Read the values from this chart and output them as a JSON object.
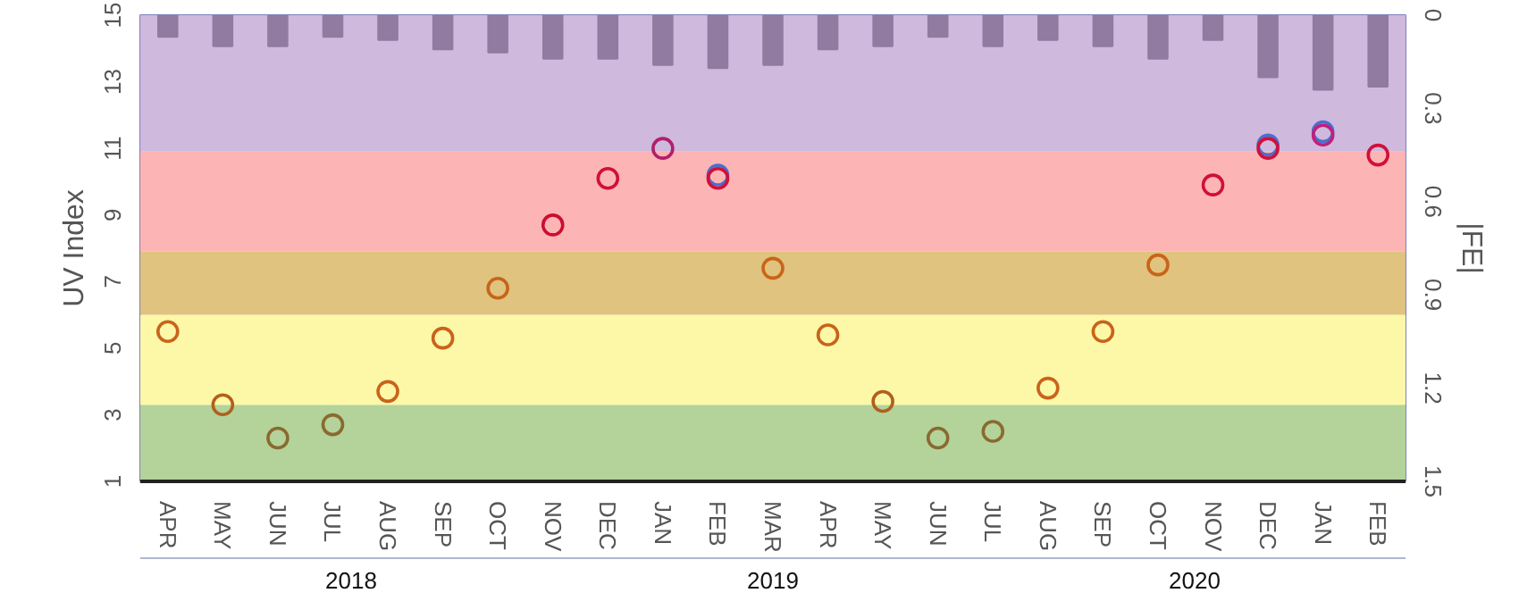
{
  "chart_data": {
    "type": "scatter",
    "ylabel": "UV Index",
    "y2label": "|FE|",
    "categories": [
      "APR",
      "MAY",
      "JUN",
      "JUL",
      "AUG",
      "SEP",
      "OCT",
      "NOV",
      "DEC",
      "JAN",
      "FEB",
      "MAR",
      "APR",
      "MAY",
      "JUN",
      "JUL",
      "AUG",
      "SEP",
      "OCT",
      "NOV",
      "DEC",
      "JAN",
      "FEB"
    ],
    "annotations": [
      "2018",
      "2019",
      "2020"
    ],
    "ylim": [
      1,
      15
    ],
    "yticks": [
      1,
      3,
      5,
      7,
      9,
      11,
      13,
      15
    ],
    "y2lim": [
      1.5,
      0
    ],
    "y2ticks": [
      0,
      0.3,
      0.6,
      0.9,
      1.2,
      1.5
    ],
    "marker": "circle",
    "grid": false,
    "series": [
      {
        "type": "bar",
        "axis": "y2",
        "color": "#917ba0",
        "values": [
          0.07,
          0.1,
          0.1,
          0.07,
          0.08,
          0.11,
          0.12,
          0.14,
          0.14,
          0.16,
          0.17,
          0.16,
          0.11,
          0.1,
          0.07,
          0.1,
          0.08,
          0.1,
          0.14,
          0.08,
          0.2,
          0.24,
          0.23
        ]
      },
      {
        "color": "#4a6fd0",
        "values": [
          null,
          null,
          null,
          null,
          null,
          null,
          null,
          null,
          null,
          null,
          10.2,
          null,
          null,
          null,
          null,
          null,
          null,
          null,
          null,
          null,
          11.1,
          11.5,
          null
        ]
      },
      {
        "color": "#d0103a",
        "values": [
          5.5,
          3.3,
          2.3,
          2.7,
          3.7,
          5.3,
          6.8,
          8.7,
          10.1,
          11.0,
          10.1,
          7.4,
          5.4,
          3.4,
          2.3,
          2.5,
          3.8,
          5.5,
          7.5,
          9.9,
          11.0,
          11.4,
          10.8
        ],
        "colors": [
          "#c8641a",
          "#b0601e",
          "#8a6a30",
          "#8a6a30",
          "#c8641a",
          "#c8641a",
          "#c8641a",
          "#c8102e",
          "#d0103a",
          "#b0206a",
          "#d0103a",
          "#c8641a",
          "#c8641a",
          "#b0601e",
          "#8a6a30",
          "#8a6a30",
          "#c8641a",
          "#c8641a",
          "#c8641a",
          "#d0103a",
          "#d0103a",
          "#c0207a",
          "#d0103a"
        ]
      }
    ],
    "bands": [
      {
        "axis": "y",
        "from": 1,
        "to": 3.3,
        "color": "#b3d39a"
      },
      {
        "axis": "y",
        "from": 3.3,
        "to": 6,
        "color": "#fdf7a8"
      },
      {
        "axis": "y",
        "from": 6,
        "to": 7.9,
        "color": "#dfc37e"
      },
      {
        "axis": "y",
        "from": 7.9,
        "to": 10.9,
        "color": "#fdb4b4"
      },
      {
        "axis": "y",
        "from": 10.9,
        "to": 15,
        "color": "#cfb9dd"
      }
    ]
  }
}
